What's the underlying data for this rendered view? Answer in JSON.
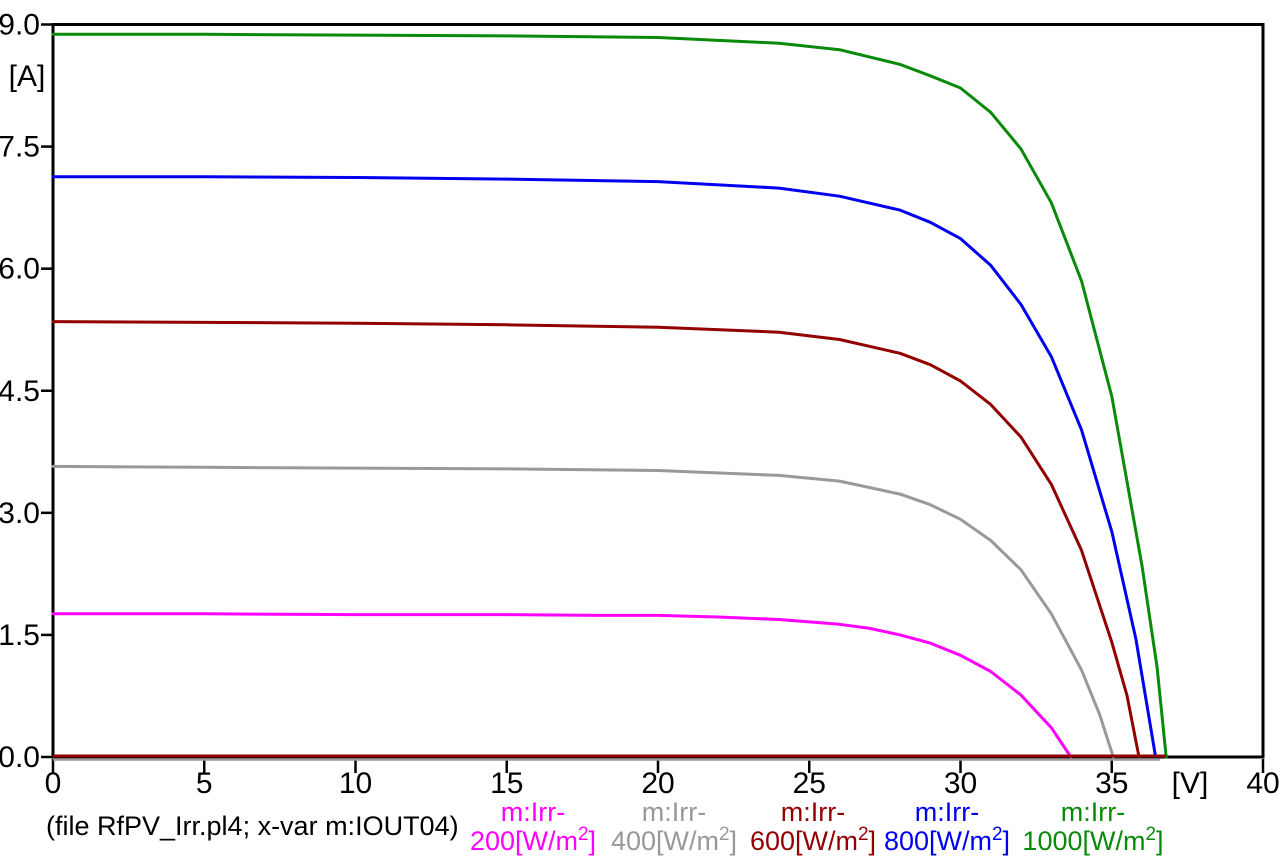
{
  "window": {
    "background": "#ffffff"
  },
  "chart_data": {
    "type": "line",
    "title": "",
    "xlabel": "[V]",
    "ylabel": "[A]",
    "xlim": [
      0,
      40
    ],
    "ylim": [
      0,
      9
    ],
    "grid": false,
    "frame_color": "#000000",
    "x_ticks": [
      "0",
      "5",
      "10",
      "15",
      "20",
      "25",
      "30",
      "35",
      "40"
    ],
    "x_tick_values": [
      0,
      5,
      10,
      15,
      20,
      25,
      30,
      35,
      40
    ],
    "y_ticks": [
      "0.0",
      "1.5",
      "3.0",
      "4.5",
      "6.0",
      "7.5",
      "9.0"
    ],
    "y_tick_values": [
      0,
      1.5,
      3,
      4.5,
      6,
      7.5,
      9
    ],
    "legend_position": "bottom",
    "series": [
      {
        "name": "m:Irr-200[W/m2]",
        "irradiance_w_m2": 200,
        "color": "#ff00ff",
        "isc_a": 1.76,
        "voc_v": 33.65,
        "points": [
          [
            0,
            1.76
          ],
          [
            5,
            1.76
          ],
          [
            10,
            1.75
          ],
          [
            15,
            1.75
          ],
          [
            18,
            1.74
          ],
          [
            20,
            1.74
          ],
          [
            22,
            1.72
          ],
          [
            24,
            1.69
          ],
          [
            26,
            1.63
          ],
          [
            27,
            1.58
          ],
          [
            28,
            1.5
          ],
          [
            29,
            1.4
          ],
          [
            30,
            1.25
          ],
          [
            31,
            1.05
          ],
          [
            32,
            0.76
          ],
          [
            33,
            0.36
          ],
          [
            33.65,
            0
          ]
        ]
      },
      {
        "name": "m:Irr-400[W/m2]",
        "irradiance_w_m2": 400,
        "color": "#999999",
        "isc_a": 3.57,
        "voc_v": 35.05,
        "points": [
          [
            0,
            3.57
          ],
          [
            5,
            3.56
          ],
          [
            10,
            3.55
          ],
          [
            15,
            3.54
          ],
          [
            20,
            3.52
          ],
          [
            24,
            3.46
          ],
          [
            26,
            3.39
          ],
          [
            28,
            3.23
          ],
          [
            29,
            3.1
          ],
          [
            30,
            2.92
          ],
          [
            31,
            2.66
          ],
          [
            32,
            2.3
          ],
          [
            33,
            1.76
          ],
          [
            34,
            1.07
          ],
          [
            34.6,
            0.52
          ],
          [
            35.05,
            0
          ]
        ]
      },
      {
        "name": "m:Irr-600[W/m2]",
        "irradiance_w_m2": 600,
        "color": "#920000",
        "isc_a": 5.35,
        "voc_v": 35.9,
        "points": [
          [
            0,
            5.35
          ],
          [
            5,
            5.34
          ],
          [
            10,
            5.33
          ],
          [
            15,
            5.31
          ],
          [
            20,
            5.28
          ],
          [
            24,
            5.22
          ],
          [
            26,
            5.13
          ],
          [
            28,
            4.96
          ],
          [
            29,
            4.82
          ],
          [
            30,
            4.62
          ],
          [
            31,
            4.33
          ],
          [
            32,
            3.93
          ],
          [
            33,
            3.35
          ],
          [
            34,
            2.54
          ],
          [
            35,
            1.41
          ],
          [
            35.5,
            0.76
          ],
          [
            35.9,
            0
          ]
        ]
      },
      {
        "name": "m:Irr-800[W/m2]",
        "irradiance_w_m2": 800,
        "color": "#0000ee",
        "isc_a": 7.13,
        "voc_v": 36.45,
        "points": [
          [
            0,
            7.13
          ],
          [
            5,
            7.13
          ],
          [
            10,
            7.12
          ],
          [
            15,
            7.1
          ],
          [
            20,
            7.07
          ],
          [
            24,
            6.99
          ],
          [
            26,
            6.89
          ],
          [
            28,
            6.72
          ],
          [
            29,
            6.57
          ],
          [
            30,
            6.37
          ],
          [
            31,
            6.04
          ],
          [
            32,
            5.56
          ],
          [
            33,
            4.92
          ],
          [
            34,
            4.02
          ],
          [
            35,
            2.77
          ],
          [
            35.8,
            1.45
          ],
          [
            36.45,
            0
          ]
        ]
      },
      {
        "name": "m:Irr-1000[W/m2]",
        "irradiance_w_m2": 1000,
        "color": "#0a8a0a",
        "isc_a": 8.88,
        "voc_v": 36.8,
        "points": [
          [
            0,
            8.88
          ],
          [
            5,
            8.88
          ],
          [
            10,
            8.87
          ],
          [
            15,
            8.86
          ],
          [
            20,
            8.84
          ],
          [
            24,
            8.77
          ],
          [
            26,
            8.69
          ],
          [
            28,
            8.51
          ],
          [
            29,
            8.37
          ],
          [
            30,
            8.22
          ],
          [
            31,
            7.92
          ],
          [
            32,
            7.47
          ],
          [
            33,
            6.81
          ],
          [
            34,
            5.85
          ],
          [
            35,
            4.43
          ],
          [
            36,
            2.35
          ],
          [
            36.5,
            1.1
          ],
          [
            36.8,
            0
          ]
        ]
      }
    ],
    "zero_baselines": [
      {
        "color": "#999999",
        "v_from": 0,
        "v_to": 36.6,
        "value_a": 0
      },
      {
        "color": "#920000",
        "v_from": 0,
        "v_to": 36.8,
        "value_a": 0
      }
    ]
  },
  "caption": "(file RfPV_Irr.pl4; x-var m:IOUT04)",
  "legend": {
    "entries": [
      {
        "line1": "m:Irr-",
        "value_main": "200[W/m",
        "sup": "2",
        "close": "]",
        "color": "#ff00ff"
      },
      {
        "line1": "m:Irr-",
        "value_main": "400[W/m",
        "sup": "2",
        "close": "]",
        "color": "#999999"
      },
      {
        "line1": "m:Irr-",
        "value_main": "600[W/m",
        "sup": "2",
        "close": "]",
        "color": "#920000"
      },
      {
        "line1": "m:Irr-",
        "value_main": "800[W/m",
        "sup": "2",
        "close": "]",
        "color": "#0000ee"
      },
      {
        "line1": "m:Irr-",
        "value_main": "1000[W/m",
        "sup": "2",
        "close": "]",
        "color": "#0a8a0a"
      }
    ]
  }
}
